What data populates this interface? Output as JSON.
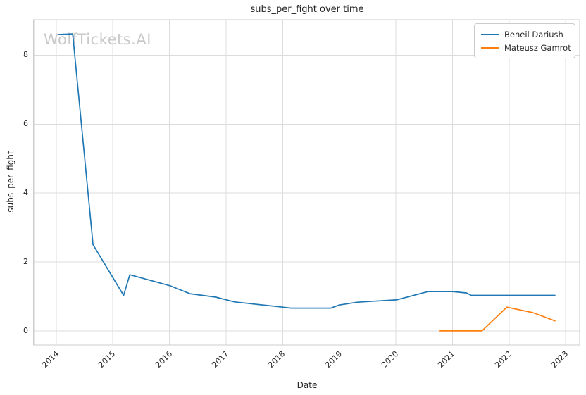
{
  "watermark": {
    "text": "WolfTickets.AI"
  },
  "chart_data": {
    "type": "line",
    "title": "subs_per_fight over time",
    "xlabel": "Date",
    "ylabel": "subs_per_fight",
    "x_ticks": [
      2014,
      2015,
      2016,
      2017,
      2018,
      2019,
      2020,
      2021,
      2022,
      2023
    ],
    "y_ticks": [
      0,
      2,
      4,
      6,
      8
    ],
    "xlim": [
      2013.6,
      2023.25
    ],
    "ylim": [
      -0.41,
      9.03
    ],
    "grid": true,
    "legend_position": "upper right",
    "series": [
      {
        "name": "Beneil Dariush",
        "color": "#1f77b4",
        "points": [
          [
            2014.04,
            8.6
          ],
          [
            2014.29,
            8.62
          ],
          [
            2014.65,
            2.5
          ],
          [
            2015.19,
            1.03
          ],
          [
            2015.3,
            1.63
          ],
          [
            2016.01,
            1.31
          ],
          [
            2016.36,
            1.08
          ],
          [
            2016.82,
            0.98
          ],
          [
            2017.15,
            0.84
          ],
          [
            2017.94,
            0.7
          ],
          [
            2018.15,
            0.66
          ],
          [
            2018.85,
            0.66
          ],
          [
            2019.0,
            0.75
          ],
          [
            2019.31,
            0.83
          ],
          [
            2019.6,
            0.86
          ],
          [
            2020.01,
            0.9
          ],
          [
            2020.57,
            1.14
          ],
          [
            2021.0,
            1.14
          ],
          [
            2021.25,
            1.1
          ],
          [
            2021.33,
            1.03
          ],
          [
            2022.81,
            1.03
          ]
        ]
      },
      {
        "name": "Mateusz Gamrot",
        "color": "#ff7f0e",
        "points": [
          [
            2020.78,
            0.0
          ],
          [
            2021.52,
            0.0
          ],
          [
            2021.96,
            0.69
          ],
          [
            2022.42,
            0.53
          ],
          [
            2022.81,
            0.29
          ]
        ]
      }
    ]
  }
}
